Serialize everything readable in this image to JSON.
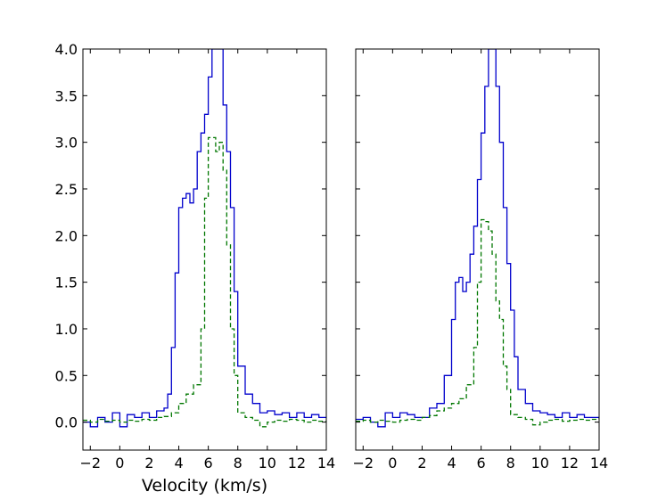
{
  "chart_data": [
    {
      "type": "line",
      "xlabel": "Velocity (km/s)",
      "ylabel": "",
      "xlim": [
        -2.5,
        14
      ],
      "ylim": [
        -0.3,
        4.0
      ],
      "xticks": [
        "−2",
        "0",
        "2",
        "4",
        "6",
        "8",
        "10",
        "12",
        "14"
      ],
      "yticks": [
        "0.0",
        "0.5",
        "1.0",
        "1.5",
        "2.0",
        "2.5",
        "3.0",
        "3.5",
        "4.0"
      ],
      "series": [
        {
          "color": "#0000cc",
          "style": "solid-steps",
          "x": [
            -2.5,
            -2.0,
            -1.5,
            -1.0,
            -0.5,
            0.0,
            0.5,
            1.0,
            1.5,
            2.0,
            2.5,
            3.0,
            3.25,
            3.5,
            3.75,
            4.0,
            4.25,
            4.5,
            4.75,
            5.0,
            5.25,
            5.5,
            5.75,
            6.0,
            6.25,
            6.5,
            6.75,
            7.0,
            7.25,
            7.5,
            7.75,
            8.0,
            8.5,
            9.0,
            9.5,
            10.0,
            10.5,
            11.0,
            11.5,
            12.0,
            12.5,
            13.0,
            13.5,
            14.0
          ],
          "y": [
            0.0,
            -0.05,
            0.05,
            0.0,
            0.1,
            -0.05,
            0.08,
            0.05,
            0.1,
            0.05,
            0.12,
            0.15,
            0.3,
            0.8,
            1.6,
            2.3,
            2.4,
            2.45,
            2.35,
            2.5,
            2.9,
            3.1,
            3.3,
            3.7,
            4.0,
            4.0,
            4.0,
            3.4,
            2.9,
            2.3,
            1.4,
            0.6,
            0.3,
            0.2,
            0.1,
            0.12,
            0.08,
            0.1,
            0.05,
            0.1,
            0.05,
            0.08,
            0.05,
            0.05
          ]
        },
        {
          "color": "#007700",
          "style": "dashed-steps",
          "x": [
            -2.5,
            -2.0,
            -1.5,
            -1.0,
            -0.5,
            0.0,
            0.5,
            1.0,
            1.5,
            2.0,
            2.5,
            3.0,
            3.5,
            4.0,
            4.5,
            5.0,
            5.5,
            5.75,
            6.0,
            6.25,
            6.5,
            6.75,
            7.0,
            7.25,
            7.5,
            7.75,
            8.0,
            8.5,
            9.0,
            9.5,
            10.0,
            10.5,
            11.0,
            11.5,
            12.0,
            12.5,
            13.0,
            13.5,
            14.0
          ],
          "y": [
            0.02,
            0.0,
            0.03,
            0.01,
            0.02,
            0.0,
            0.02,
            0.01,
            0.03,
            0.02,
            0.05,
            0.06,
            0.1,
            0.2,
            0.3,
            0.4,
            1.0,
            2.4,
            3.05,
            3.05,
            2.9,
            3.0,
            2.7,
            1.9,
            1.0,
            0.5,
            0.1,
            0.05,
            0.02,
            -0.05,
            0.0,
            0.02,
            0.01,
            0.03,
            0.02,
            0.0,
            0.02,
            0.01,
            0.0
          ]
        }
      ]
    },
    {
      "type": "line",
      "xlabel": "",
      "ylabel": "",
      "xlim": [
        -2.5,
        14
      ],
      "ylim": [
        -0.3,
        4.0
      ],
      "xticks": [
        "−2",
        "0",
        "2",
        "4",
        "6",
        "8",
        "10",
        "12",
        "14"
      ],
      "yticks": [],
      "series": [
        {
          "color": "#0000cc",
          "style": "solid-steps",
          "x": [
            -2.5,
            -2.0,
            -1.5,
            -1.0,
            -0.5,
            0.0,
            0.5,
            1.0,
            1.5,
            2.0,
            2.5,
            3.0,
            3.5,
            4.0,
            4.25,
            4.5,
            4.75,
            5.0,
            5.25,
            5.5,
            5.75,
            6.0,
            6.25,
            6.5,
            6.75,
            7.0,
            7.25,
            7.5,
            7.75,
            8.0,
            8.25,
            8.5,
            9.0,
            9.5,
            10.0,
            10.5,
            11.0,
            11.5,
            12.0,
            12.5,
            13.0,
            13.5,
            14.0
          ],
          "y": [
            0.03,
            0.05,
            0.0,
            -0.05,
            0.1,
            0.05,
            0.1,
            0.08,
            0.05,
            0.05,
            0.15,
            0.2,
            0.5,
            1.1,
            1.5,
            1.55,
            1.4,
            1.5,
            1.8,
            2.1,
            2.6,
            3.1,
            3.6,
            4.0,
            4.0,
            3.6,
            3.0,
            2.3,
            1.7,
            1.2,
            0.7,
            0.35,
            0.2,
            0.12,
            0.1,
            0.08,
            0.05,
            0.1,
            0.05,
            0.08,
            0.05,
            0.05,
            0.05
          ]
        },
        {
          "color": "#007700",
          "style": "dashed-steps",
          "x": [
            -2.5,
            -2.0,
            -1.5,
            -1.0,
            -0.5,
            0.0,
            0.5,
            1.0,
            1.5,
            2.0,
            2.5,
            3.0,
            3.5,
            4.0,
            4.5,
            5.0,
            5.5,
            5.75,
            6.0,
            6.25,
            6.5,
            6.75,
            7.0,
            7.25,
            7.5,
            7.75,
            8.0,
            8.5,
            9.0,
            9.5,
            10.0,
            10.5,
            11.0,
            11.5,
            12.0,
            12.5,
            13.0,
            13.5,
            14.0
          ],
          "y": [
            0.01,
            0.02,
            0.0,
            0.02,
            0.01,
            0.0,
            0.02,
            0.03,
            0.02,
            0.05,
            0.07,
            0.12,
            0.15,
            0.2,
            0.25,
            0.4,
            0.8,
            1.5,
            2.17,
            2.15,
            2.05,
            1.8,
            1.3,
            1.1,
            0.6,
            0.35,
            0.08,
            0.05,
            0.03,
            -0.03,
            0.0,
            0.02,
            0.03,
            0.01,
            0.02,
            0.03,
            0.02,
            0.03,
            0.05
          ]
        }
      ]
    }
  ]
}
